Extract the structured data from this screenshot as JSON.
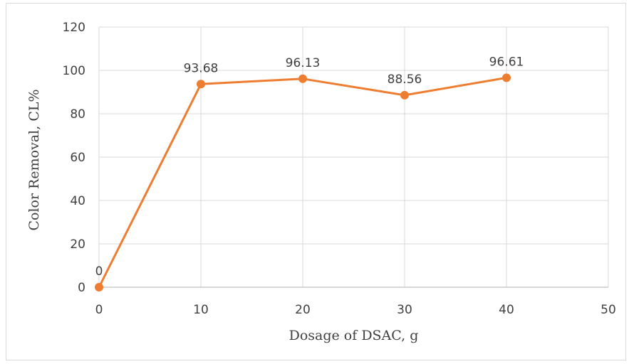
{
  "chart_data": {
    "type": "line",
    "title": "",
    "xlabel": "Dosage of DSAC, g",
    "ylabel": "Color Removal, CL%",
    "xlim": [
      0,
      50
    ],
    "ylim": [
      0,
      120
    ],
    "x_ticks": [
      "0",
      "10",
      "20",
      "30",
      "40",
      "50"
    ],
    "y_ticks": [
      "0",
      "20",
      "40",
      "60",
      "80",
      "100",
      "120"
    ],
    "grid": true,
    "legend": "none",
    "series": [
      {
        "x": [
          0,
          10,
          20,
          30,
          40
        ],
        "values": [
          0,
          93.68,
          96.13,
          88.56,
          96.61
        ],
        "labels": [
          "0",
          "93.68",
          "96.13",
          "88.56",
          "96.61"
        ],
        "color": "#ED7D31"
      }
    ]
  }
}
